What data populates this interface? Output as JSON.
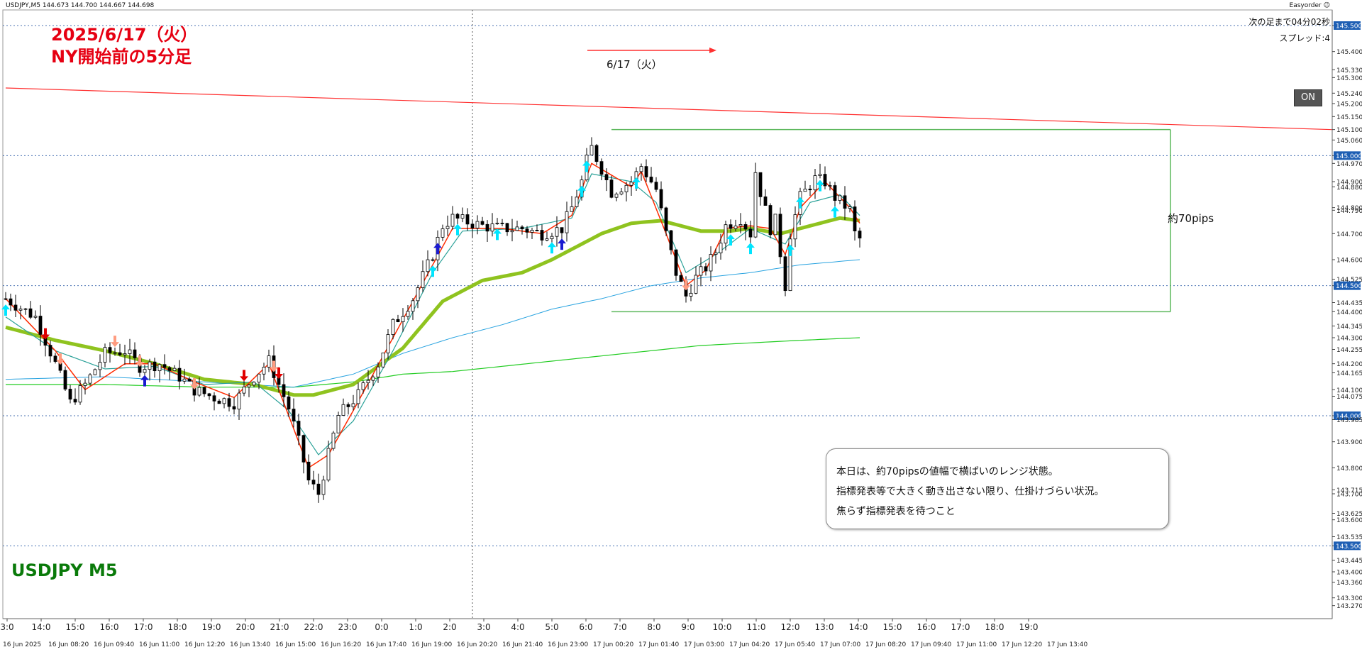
{
  "header": {
    "info": "USDJPY,M5  144.673 144.700 144.667 144.698",
    "easyorder": "Easyorder ☺",
    "countdown": "次の足まで04分02秒",
    "spread": "スプレッド:4",
    "on_button": "ON"
  },
  "annotations": {
    "title_line1": "2025/6/17（火）",
    "title_line2": "NY開始前の5分足",
    "symbol_label": "USDJPY M5",
    "date_arrow_label": "6/17（火）",
    "range_label": "約70pips",
    "comment_lines": [
      "本日は、約70pipsの値幅で横ばいのレンジ状態。",
      "指標発表等で大きく動き出さない限り、仕掛けづらい状況。",
      "焦らず指標発表を待つこと"
    ]
  },
  "colors": {
    "background": "#ffffff",
    "candle": "#000000",
    "ema_fast": "#ff2a00",
    "ema_mid": "#2aa198",
    "ma_thick": "#8fc31f",
    "ma_blue": "#29a3e0",
    "ma_green": "#22cc22",
    "trendline": "#ff3030",
    "range_box": "#5cb85c",
    "grid": "#1e50a0",
    "title": "#e60012",
    "symbol": "#0a7a0a",
    "arrow_up": "#00e5ff",
    "arrow_up_strong": "#1a1ad0",
    "arrow_down": "#ff9c80",
    "arrow_down_strong": "#e00000"
  },
  "chart_data": {
    "type": "candlestick",
    "symbol": "USDJPY",
    "timeframe": "M5",
    "ylim": [
      143.22,
      145.56
    ],
    "price_axis_ticks": [
      {
        "value": 145.5,
        "label": "145.500",
        "highlight": true
      },
      {
        "value": 145.4,
        "label": "145.400",
        "highlight": false
      },
      {
        "value": 145.33,
        "label": "145.330",
        "highlight": false
      },
      {
        "value": 145.3,
        "label": "145.300",
        "highlight": false
      },
      {
        "value": 145.24,
        "label": "145.240",
        "highlight": false
      },
      {
        "value": 145.2,
        "label": "145.200",
        "highlight": false
      },
      {
        "value": 145.15,
        "label": "145.150",
        "highlight": false
      },
      {
        "value": 145.1,
        "label": "145.100",
        "highlight": false
      },
      {
        "value": 145.06,
        "label": "145.060",
        "highlight": false
      },
      {
        "value": 145.0,
        "label": "145.000",
        "highlight": true
      },
      {
        "value": 144.97,
        "label": "144.970",
        "highlight": false
      },
      {
        "value": 144.9,
        "label": "144.900",
        "highlight": false
      },
      {
        "value": 144.88,
        "label": "144.880",
        "highlight": false
      },
      {
        "value": 144.8,
        "label": "144.800",
        "highlight": false
      },
      {
        "value": 144.79,
        "label": "144.790",
        "highlight": false
      },
      {
        "value": 144.7,
        "label": "144.700",
        "highlight": false
      },
      {
        "value": 144.6,
        "label": "144.600",
        "highlight": false
      },
      {
        "value": 144.525,
        "label": "144.525",
        "highlight": false
      },
      {
        "value": 144.5,
        "label": "144.500",
        "highlight": true
      },
      {
        "value": 144.435,
        "label": "144.435",
        "highlight": false
      },
      {
        "value": 144.4,
        "label": "144.400",
        "highlight": false
      },
      {
        "value": 144.345,
        "label": "144.345",
        "highlight": false
      },
      {
        "value": 144.3,
        "label": "144.300",
        "highlight": false
      },
      {
        "value": 144.255,
        "label": "144.255",
        "highlight": false
      },
      {
        "value": 144.2,
        "label": "144.200",
        "highlight": false
      },
      {
        "value": 144.165,
        "label": "144.165",
        "highlight": false
      },
      {
        "value": 144.1,
        "label": "144.100",
        "highlight": false
      },
      {
        "value": 144.075,
        "label": "144.075",
        "highlight": false
      },
      {
        "value": 144.0,
        "label": "144.000",
        "highlight": true
      },
      {
        "value": 143.985,
        "label": "143.985",
        "highlight": false
      },
      {
        "value": 143.9,
        "label": "143.900",
        "highlight": false
      },
      {
        "value": 143.8,
        "label": "143.800",
        "highlight": false
      },
      {
        "value": 143.715,
        "label": "143.715",
        "highlight": false
      },
      {
        "value": 143.7,
        "label": "143.700",
        "highlight": false
      },
      {
        "value": 143.625,
        "label": "143.625",
        "highlight": false
      },
      {
        "value": 143.6,
        "label": "143.600",
        "highlight": false
      },
      {
        "value": 143.535,
        "label": "143.535",
        "highlight": false
      },
      {
        "value": 143.5,
        "label": "143.500",
        "highlight": true
      },
      {
        "value": 143.445,
        "label": "143.445",
        "highlight": false
      },
      {
        "value": 143.4,
        "label": "143.400",
        "highlight": false
      },
      {
        "value": 143.36,
        "label": "143.360",
        "highlight": false
      },
      {
        "value": 143.3,
        "label": "143.300",
        "highlight": false
      },
      {
        "value": 143.27,
        "label": "143.270",
        "highlight": false
      }
    ],
    "time_top_labels": [
      "3:0",
      "14:0",
      "15:0",
      "16:0",
      "17:0",
      "18:0",
      "19:0",
      "20:0",
      "21:0",
      "22:0",
      "23:0",
      "0:0",
      "1:0",
      "2:0",
      "3:0",
      "4:0",
      "5:0",
      "6:0",
      "7:0",
      "8:0",
      "9:0",
      "10:0",
      "11:0",
      "12:0",
      "13:0",
      "14:0",
      "15:0",
      "16:0",
      "17:0",
      "18:0",
      "19:0"
    ],
    "time_bottom_labels": [
      "16 Jun 2025",
      "16 Jun 08:20",
      "16 Jun 09:40",
      "16 Jun 11:00",
      "16 Jun 12:20",
      "16 Jun 13:40",
      "16 Jun 15:00",
      "16 Jun 16:20",
      "16 Jun 17:40",
      "16 Jun 19:00",
      "16 Jun 20:20",
      "16 Jun 21:40",
      "16 Jun 23:00",
      "17 Jun 00:20",
      "17 Jun 01:40",
      "17 Jun 03:00",
      "17 Jun 04:20",
      "17 Jun 05:40",
      "17 Jun 07:00",
      "17 Jun 08:20",
      "17 Jun 09:40",
      "17 Jun 11:00",
      "17 Jun 12:20",
      "17 Jun 13:40"
    ],
    "close_path": [
      [
        0,
        144.45
      ],
      [
        6,
        144.38
      ],
      [
        10,
        144.2
      ],
      [
        13,
        144.05
      ],
      [
        16,
        144.12
      ],
      [
        20,
        144.24
      ],
      [
        24,
        144.25
      ],
      [
        27,
        144.19
      ],
      [
        31,
        144.2
      ],
      [
        35,
        144.15
      ],
      [
        38,
        144.1
      ],
      [
        42,
        144.07
      ],
      [
        46,
        144.05
      ],
      [
        50,
        144.15
      ],
      [
        53,
        144.21
      ],
      [
        57,
        144.03
      ],
      [
        59,
        143.9
      ],
      [
        61,
        143.75
      ],
      [
        63,
        143.7
      ],
      [
        65,
        143.85
      ],
      [
        67,
        144.0
      ],
      [
        71,
        144.08
      ],
      [
        75,
        144.2
      ],
      [
        78,
        144.35
      ],
      [
        82,
        144.45
      ],
      [
        86,
        144.62
      ],
      [
        88,
        144.73
      ],
      [
        90,
        144.76
      ],
      [
        92,
        144.75
      ],
      [
        96,
        144.73
      ],
      [
        100,
        144.72
      ],
      [
        104,
        144.72
      ],
      [
        108,
        144.7
      ],
      [
        112,
        144.72
      ],
      [
        114,
        144.8
      ],
      [
        116,
        144.9
      ],
      [
        117,
        144.98
      ],
      [
        118,
        145.03
      ],
      [
        120,
        144.95
      ],
      [
        122,
        144.86
      ],
      [
        126,
        144.9
      ],
      [
        128,
        144.96
      ],
      [
        131,
        144.87
      ],
      [
        133,
        144.7
      ],
      [
        135,
        144.55
      ],
      [
        137,
        144.46
      ],
      [
        139,
        144.53
      ],
      [
        141,
        144.57
      ],
      [
        143,
        144.63
      ],
      [
        145,
        144.73
      ],
      [
        148,
        144.76
      ],
      [
        150,
        144.7
      ],
      [
        151,
        144.94
      ],
      [
        152,
        144.86
      ],
      [
        154,
        144.72
      ],
      [
        155,
        144.75
      ],
      [
        157,
        144.5
      ],
      [
        158,
        144.7
      ],
      [
        160,
        144.84
      ],
      [
        163,
        144.91
      ],
      [
        165,
        144.9
      ],
      [
        167,
        144.84
      ],
      [
        170,
        144.79
      ],
      [
        171,
        144.7
      ],
      [
        172,
        144.68
      ]
    ],
    "ema_fast": [
      [
        0,
        144.45
      ],
      [
        10,
        144.25
      ],
      [
        16,
        144.1
      ],
      [
        24,
        144.2
      ],
      [
        30,
        144.2
      ],
      [
        38,
        144.13
      ],
      [
        46,
        144.07
      ],
      [
        53,
        144.2
      ],
      [
        57,
        144.0
      ],
      [
        61,
        143.8
      ],
      [
        65,
        143.85
      ],
      [
        70,
        144.02
      ],
      [
        78,
        144.3
      ],
      [
        86,
        144.58
      ],
      [
        90,
        144.72
      ],
      [
        100,
        144.72
      ],
      [
        108,
        144.7
      ],
      [
        114,
        144.77
      ],
      [
        118,
        144.97
      ],
      [
        126,
        144.88
      ],
      [
        128,
        144.94
      ],
      [
        133,
        144.7
      ],
      [
        137,
        144.5
      ],
      [
        141,
        144.56
      ],
      [
        145,
        144.72
      ],
      [
        150,
        144.73
      ],
      [
        154,
        144.72
      ],
      [
        157,
        144.62
      ],
      [
        160,
        144.8
      ],
      [
        165,
        144.9
      ],
      [
        170,
        144.8
      ],
      [
        172,
        144.74
      ]
    ],
    "ema_mid": [
      [
        0,
        144.38
      ],
      [
        10,
        144.25
      ],
      [
        20,
        144.18
      ],
      [
        30,
        144.19
      ],
      [
        40,
        144.12
      ],
      [
        50,
        144.13
      ],
      [
        57,
        144.02
      ],
      [
        63,
        143.85
      ],
      [
        70,
        143.98
      ],
      [
        78,
        144.25
      ],
      [
        86,
        144.55
      ],
      [
        92,
        144.71
      ],
      [
        104,
        144.72
      ],
      [
        114,
        144.76
      ],
      [
        118,
        144.93
      ],
      [
        126,
        144.9
      ],
      [
        131,
        144.82
      ],
      [
        137,
        144.55
      ],
      [
        143,
        144.62
      ],
      [
        150,
        144.72
      ],
      [
        157,
        144.66
      ],
      [
        162,
        144.82
      ],
      [
        168,
        144.85
      ],
      [
        172,
        144.77
      ]
    ],
    "ma_thick": [
      [
        0,
        144.34
      ],
      [
        10,
        144.29
      ],
      [
        20,
        144.25
      ],
      [
        30,
        144.2
      ],
      [
        40,
        144.14
      ],
      [
        50,
        144.12
      ],
      [
        58,
        144.08
      ],
      [
        62,
        144.08
      ],
      [
        70,
        144.12
      ],
      [
        80,
        144.26
      ],
      [
        88,
        144.44
      ],
      [
        96,
        144.52
      ],
      [
        104,
        144.55
      ],
      [
        110,
        144.6
      ],
      [
        116,
        144.66
      ],
      [
        120,
        144.7
      ],
      [
        126,
        144.74
      ],
      [
        132,
        144.75
      ],
      [
        136,
        144.73
      ],
      [
        140,
        144.71
      ],
      [
        146,
        144.71
      ],
      [
        150,
        144.72
      ],
      [
        156,
        144.7
      ],
      [
        162,
        144.73
      ],
      [
        168,
        144.76
      ],
      [
        172,
        144.75
      ]
    ],
    "ma_blue": [
      [
        0,
        144.14
      ],
      [
        20,
        144.15
      ],
      [
        40,
        144.13
      ],
      [
        58,
        144.11
      ],
      [
        70,
        144.16
      ],
      [
        80,
        144.24
      ],
      [
        90,
        144.3
      ],
      [
        100,
        144.35
      ],
      [
        110,
        144.41
      ],
      [
        120,
        144.45
      ],
      [
        130,
        144.5
      ],
      [
        140,
        144.53
      ],
      [
        150,
        144.55
      ],
      [
        160,
        144.58
      ],
      [
        172,
        144.6
      ]
    ],
    "ma_green": [
      [
        0,
        144.12
      ],
      [
        20,
        144.12
      ],
      [
        40,
        144.11
      ],
      [
        58,
        144.11
      ],
      [
        70,
        144.13
      ],
      [
        80,
        144.16
      ],
      [
        90,
        144.17
      ],
      [
        100,
        144.19
      ],
      [
        110,
        144.21
      ],
      [
        120,
        144.23
      ],
      [
        130,
        144.25
      ],
      [
        140,
        144.27
      ],
      [
        150,
        144.28
      ],
      [
        160,
        144.29
      ],
      [
        172,
        144.3
      ]
    ],
    "trendline": {
      "start": [
        0,
        145.26
      ],
      "end": [
        214,
        145.1
      ]
    },
    "range_box": {
      "top": 145.1,
      "bottom": 144.4,
      "start_bar": 122,
      "end_bar": 188,
      "label": "約70pips"
    },
    "grid_levels": [
      145.5,
      145.0,
      144.5,
      144.0,
      143.5
    ],
    "day_separator_bar": 94,
    "signals": [
      {
        "bar": 0,
        "type": "up",
        "strong": false
      },
      {
        "bar": 8,
        "type": "down",
        "strong": true
      },
      {
        "bar": 11,
        "type": "down",
        "strong": false
      },
      {
        "bar": 22,
        "type": "down",
        "strong": false
      },
      {
        "bar": 27,
        "type": "down",
        "strong": false
      },
      {
        "bar": 28,
        "type": "up",
        "strong": true
      },
      {
        "bar": 38,
        "type": "down",
        "strong": false
      },
      {
        "bar": 48,
        "type": "down",
        "strong": true
      },
      {
        "bar": 54,
        "type": "down",
        "strong": false
      },
      {
        "bar": 55,
        "type": "down",
        "strong": true
      },
      {
        "bar": 87,
        "type": "up",
        "strong": true
      },
      {
        "bar": 86,
        "type": "up",
        "strong": false
      },
      {
        "bar": 91,
        "type": "up",
        "strong": false
      },
      {
        "bar": 99,
        "type": "up",
        "strong": false
      },
      {
        "bar": 110,
        "type": "up",
        "strong": false
      },
      {
        "bar": 112,
        "type": "up",
        "strong": true
      },
      {
        "bar": 116,
        "type": "up",
        "strong": false
      },
      {
        "bar": 117,
        "type": "up",
        "strong": false
      },
      {
        "bar": 127,
        "type": "up",
        "strong": false
      },
      {
        "bar": 137,
        "type": "down",
        "strong": false
      },
      {
        "bar": 146,
        "type": "up",
        "strong": false
      },
      {
        "bar": 150,
        "type": "up",
        "strong": false
      },
      {
        "bar": 158,
        "type": "up",
        "strong": false
      },
      {
        "bar": 160,
        "type": "up",
        "strong": false
      },
      {
        "bar": 164,
        "type": "up",
        "strong": false
      },
      {
        "bar": 167,
        "type": "up",
        "strong": false
      }
    ]
  }
}
